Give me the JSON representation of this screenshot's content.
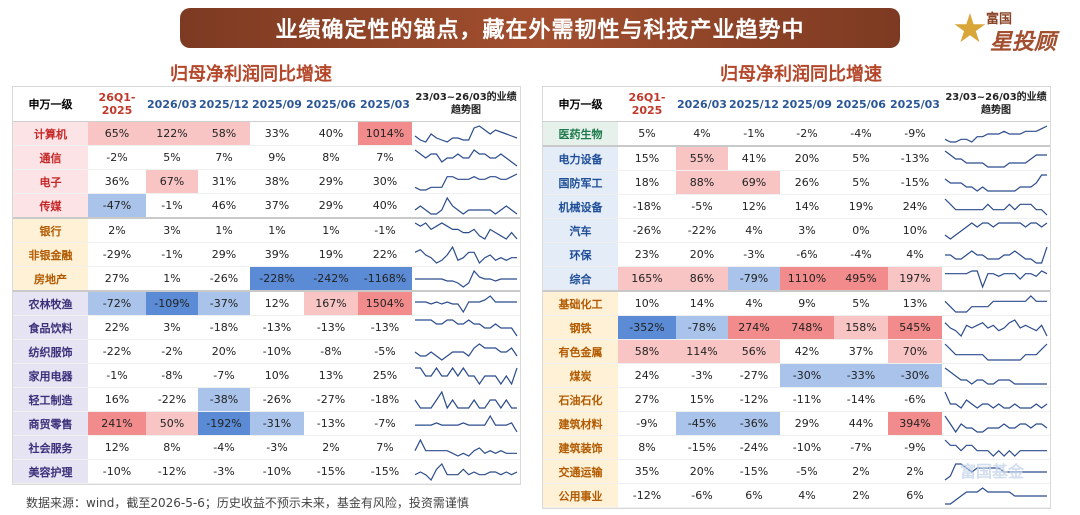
{
  "title": "业绩确定性的锚点，藏在外需韧性与科技产业趋势中",
  "logo": {
    "line1": "富国",
    "line2": "星投顾"
  },
  "footer": "数据来源：wind，截至2026-5-6；历史收益不预示未来，基金有风险，投资需谨慎",
  "watermark": "富国基金",
  "colors": {
    "high_red": "#f28b8b",
    "mid_red": "#f8c4c4",
    "low_red": "#fde6e6",
    "neg_blue": "#5b8bd4",
    "mid_blue": "#a9c3ea",
    "low_blue": "#dfe8f6",
    "line": "#2b4c8c"
  },
  "chart_data": [
    {
      "type": "table",
      "title": "归母净利润同比增速",
      "columns": [
        "申万一级",
        "26Q1-2025",
        "2026/03",
        "2025/12",
        "2025/09",
        "2025/06",
        "2025/03",
        "23/03~26/03的业绩趋势图"
      ],
      "rows": [
        {
          "name": "计算机",
          "group": 1,
          "values": [
            "65%",
            "122%",
            "58%",
            "33%",
            "40%",
            "1014%"
          ],
          "trend": [
            5,
            3,
            2,
            6,
            4,
            3,
            2,
            4,
            4,
            3,
            3,
            9,
            10,
            8,
            6,
            8,
            7,
            6,
            5,
            4
          ]
        },
        {
          "name": "通信",
          "group": 1,
          "values": [
            "-2%",
            "5%",
            "7%",
            "9%",
            "8%",
            "7%"
          ],
          "trend": [
            6,
            5,
            4,
            5,
            5,
            3,
            4,
            4,
            5,
            4,
            4,
            6,
            5,
            5,
            4,
            4,
            5,
            4,
            3,
            2
          ]
        },
        {
          "name": "电子",
          "group": 1,
          "values": [
            "36%",
            "67%",
            "31%",
            "38%",
            "29%",
            "30%"
          ],
          "trend": [
            2,
            1,
            1,
            2,
            2,
            2,
            6,
            6,
            5,
            5,
            5,
            6,
            5,
            5,
            6,
            6,
            5,
            5,
            6,
            7
          ]
        },
        {
          "name": "传媒",
          "group": 1,
          "values": [
            "-47%",
            "-1%",
            "46%",
            "37%",
            "29%",
            "40%"
          ],
          "trend": [
            5,
            6,
            5,
            4,
            4,
            5,
            8,
            6,
            5,
            4,
            5,
            5,
            5,
            5,
            5,
            4,
            5,
            6,
            5,
            4
          ]
        },
        {
          "name": "银行",
          "group": 2,
          "values": [
            "2%",
            "3%",
            "1%",
            "1%",
            "1%",
            "-1%"
          ],
          "trend": [
            7,
            6,
            7,
            5,
            6,
            7,
            6,
            5,
            5,
            4,
            4,
            5,
            3,
            2,
            5,
            4,
            3,
            2,
            4,
            2
          ]
        },
        {
          "name": "非银金融",
          "group": 2,
          "values": [
            "-29%",
            "-1%",
            "29%",
            "39%",
            "19%",
            "22%"
          ],
          "trend": [
            6,
            7,
            5,
            4,
            2,
            3,
            5,
            8,
            3,
            4,
            6,
            6,
            2,
            4,
            5,
            3,
            4,
            3,
            4,
            4
          ]
        },
        {
          "name": "房地产",
          "group": 2,
          "values": [
            "27%",
            "1%",
            "-26%",
            "-228%",
            "-242%",
            "-1168%"
          ],
          "trend": [
            5,
            5,
            5,
            5,
            5,
            5,
            4,
            4,
            3,
            1,
            3,
            9,
            6,
            5,
            5,
            4,
            5,
            5,
            5,
            5
          ]
        },
        {
          "name": "农林牧渔",
          "group": 3,
          "values": [
            "-72%",
            "-109%",
            "-37%",
            "12%",
            "167%",
            "1504%"
          ],
          "trend": [
            6,
            6,
            6,
            5,
            6,
            5,
            6,
            5,
            5,
            1,
            6,
            6,
            6,
            7,
            9,
            6,
            6,
            6,
            6,
            6
          ]
        },
        {
          "name": "食品饮料",
          "group": 3,
          "values": [
            "22%",
            "3%",
            "-18%",
            "-13%",
            "-13%",
            "-13%"
          ],
          "trend": [
            6,
            6,
            6,
            6,
            5,
            5,
            6,
            6,
            5,
            5,
            6,
            5,
            5,
            4,
            4,
            5,
            4,
            4,
            4,
            2
          ]
        },
        {
          "name": "纺织服饰",
          "group": 3,
          "values": [
            "-22%",
            "-2%",
            "20%",
            "-10%",
            "-8%",
            "-5%"
          ],
          "trend": [
            4,
            3,
            3,
            4,
            3,
            2,
            3,
            4,
            4,
            4,
            3,
            5,
            6,
            5,
            5,
            5,
            4,
            4,
            5,
            3
          ]
        },
        {
          "name": "家用电器",
          "group": 3,
          "values": [
            "-1%",
            "-8%",
            "-7%",
            "10%",
            "13%",
            "25%"
          ],
          "trend": [
            6,
            6,
            5,
            5,
            6,
            5,
            5,
            6,
            5,
            6,
            5,
            5,
            4,
            5,
            5,
            5,
            4,
            5,
            4,
            6
          ]
        },
        {
          "name": "轻工制造",
          "group": 3,
          "values": [
            "16%",
            "-22%",
            "-38%",
            "-26%",
            "-27%",
            "-18%"
          ],
          "trend": [
            4,
            3,
            3,
            3,
            4,
            5,
            3,
            4,
            3,
            3,
            3,
            4,
            3,
            3,
            4,
            4,
            3,
            4,
            3,
            3
          ]
        },
        {
          "name": "商贸零售",
          "group": 3,
          "values": [
            "241%",
            "50%",
            "-192%",
            "-31%",
            "-13%",
            "-7%"
          ],
          "trend": [
            5,
            5,
            5,
            5,
            6,
            5,
            5,
            5,
            5,
            6,
            5,
            5,
            5,
            5,
            9,
            5,
            5,
            5,
            6,
            2
          ]
        },
        {
          "name": "社会服务",
          "group": 3,
          "values": [
            "12%",
            "8%",
            "-4%",
            "-3%",
            "2%",
            "7%"
          ],
          "trend": [
            5,
            9,
            5,
            5,
            5,
            5,
            5,
            4,
            3,
            4,
            3,
            5,
            6,
            4,
            5,
            4,
            5,
            4,
            4,
            4
          ]
        },
        {
          "name": "美容护理",
          "group": 3,
          "values": [
            "-10%",
            "-12%",
            "-3%",
            "-10%",
            "-15%",
            "-15%"
          ],
          "trend": [
            4,
            5,
            4,
            2,
            6,
            8,
            4,
            4,
            4,
            6,
            4,
            5,
            4,
            4,
            5,
            5,
            4,
            5,
            4,
            5
          ]
        }
      ]
    },
    {
      "type": "table",
      "title": "归母净利润同比增速",
      "columns": [
        "申万一级",
        "26Q1-2025",
        "2026/03",
        "2025/12",
        "2025/09",
        "2025/06",
        "2025/03",
        "23/03~26/03的业绩趋势图"
      ],
      "rows": [
        {
          "name": "医药生物",
          "group": 4,
          "values": [
            "5%",
            "4%",
            "-1%",
            "-2%",
            "-4%",
            "-9%"
          ],
          "trend": [
            3,
            2,
            2,
            3,
            3,
            2,
            4,
            4,
            5,
            5,
            5,
            6,
            5,
            5,
            5,
            6,
            6,
            6,
            7,
            8
          ]
        },
        {
          "name": "电力设备",
          "group": 5,
          "values": [
            "15%",
            "55%",
            "41%",
            "20%",
            "5%",
            "-13%"
          ],
          "trend": [
            8,
            7,
            6,
            6,
            5,
            5,
            5,
            5,
            4,
            4,
            4,
            4,
            5,
            5,
            5,
            5,
            6,
            7,
            7,
            7
          ]
        },
        {
          "name": "国防军工",
          "group": 5,
          "values": [
            "18%",
            "88%",
            "69%",
            "26%",
            "5%",
            "-15%"
          ],
          "trend": [
            7,
            6,
            6,
            6,
            5,
            5,
            4,
            5,
            4,
            4,
            4,
            4,
            4,
            4,
            5,
            5,
            5,
            6,
            8,
            8
          ]
        },
        {
          "name": "机械设备",
          "group": 5,
          "values": [
            "-18%",
            "-5%",
            "12%",
            "14%",
            "19%",
            "24%"
          ],
          "trend": [
            7,
            6,
            5,
            5,
            5,
            5,
            5,
            5,
            6,
            5,
            5,
            5,
            6,
            5,
            6,
            6,
            6,
            5,
            5,
            4
          ]
        },
        {
          "name": "汽车",
          "group": 5,
          "values": [
            "-26%",
            "-22%",
            "4%",
            "3%",
            "0%",
            "10%"
          ],
          "trend": [
            3,
            2,
            3,
            4,
            5,
            6,
            5,
            6,
            6,
            5,
            6,
            6,
            6,
            6,
            6,
            5,
            6,
            6,
            5,
            6
          ]
        },
        {
          "name": "环保",
          "group": 5,
          "values": [
            "23%",
            "20%",
            "-3%",
            "-6%",
            "-4%",
            "4%"
          ],
          "trend": [
            5,
            5,
            4,
            4,
            5,
            6,
            5,
            5,
            4,
            4,
            4,
            5,
            5,
            6,
            5,
            4,
            4,
            3,
            3,
            7
          ]
        },
        {
          "name": "综合",
          "group": 5,
          "values": [
            "165%",
            "86%",
            "-79%",
            "1110%",
            "495%",
            "197%"
          ],
          "trend": [
            6,
            6,
            6,
            6,
            6,
            7,
            7,
            1,
            6,
            6,
            5,
            6,
            6,
            6,
            4,
            6,
            6,
            5,
            7,
            6
          ]
        },
        {
          "name": "基础化工",
          "group": 6,
          "values": [
            "10%",
            "14%",
            "4%",
            "9%",
            "5%",
            "13%"
          ],
          "trend": [
            6,
            5,
            4,
            4,
            4,
            5,
            5,
            5,
            5,
            6,
            6,
            6,
            6,
            6,
            6,
            6,
            7,
            6,
            6,
            6
          ]
        },
        {
          "name": "钢铁",
          "group": 6,
          "values": [
            "-352%",
            "-78%",
            "274%",
            "748%",
            "158%",
            "545%"
          ],
          "trend": [
            7,
            5,
            4,
            2,
            6,
            5,
            6,
            7,
            5,
            6,
            4,
            5,
            7,
            8,
            5,
            6,
            5,
            4,
            6,
            2
          ]
        },
        {
          "name": "有色金属",
          "group": 6,
          "values": [
            "58%",
            "114%",
            "56%",
            "42%",
            "37%",
            "70%"
          ],
          "trend": [
            7,
            6,
            5,
            5,
            5,
            5,
            5,
            5,
            4,
            4,
            4,
            4,
            4,
            4,
            4,
            5,
            5,
            5,
            6,
            7
          ]
        },
        {
          "name": "煤炭",
          "group": 6,
          "values": [
            "24%",
            "-3%",
            "-27%",
            "-30%",
            "-33%",
            "-30%"
          ],
          "trend": [
            8,
            7,
            6,
            5,
            5,
            4,
            5,
            5,
            4,
            4,
            5,
            5,
            5,
            4,
            4,
            4,
            4,
            4,
            4,
            4
          ]
        },
        {
          "name": "石油石化",
          "group": 6,
          "values": [
            "27%",
            "15%",
            "-12%",
            "-11%",
            "-14%",
            "-6%"
          ],
          "trend": [
            8,
            5,
            5,
            4,
            6,
            5,
            4,
            5,
            5,
            4,
            5,
            4,
            4,
            5,
            4,
            4,
            4,
            5,
            4,
            5
          ]
        },
        {
          "name": "建筑材料",
          "group": 6,
          "values": [
            "-9%",
            "-45%",
            "-36%",
            "29%",
            "44%",
            "394%"
          ],
          "trend": [
            7,
            5,
            3,
            5,
            4,
            4,
            3,
            3,
            4,
            4,
            4,
            5,
            4,
            4,
            5,
            5,
            4,
            5,
            5,
            4
          ]
        },
        {
          "name": "建筑装饰",
          "group": 6,
          "values": [
            "8%",
            "-15%",
            "-24%",
            "-10%",
            "-7%",
            "-9%"
          ],
          "trend": [
            6,
            5,
            5,
            4,
            5,
            5,
            4,
            4,
            4,
            3,
            4,
            3,
            4,
            3,
            4,
            4,
            4,
            4,
            4,
            4
          ]
        },
        {
          "name": "交通运输",
          "group": 6,
          "values": [
            "35%",
            "20%",
            "-15%",
            "-5%",
            "2%",
            "2%"
          ],
          "trend": [
            3,
            4,
            7,
            7,
            6,
            5,
            6,
            6,
            6,
            6,
            6,
            5,
            5,
            5,
            5,
            5,
            5,
            5,
            5,
            5
          ]
        },
        {
          "name": "公用事业",
          "group": 6,
          "values": [
            "-12%",
            "-6%",
            "6%",
            "4%",
            "2%",
            "6%"
          ],
          "trend": [
            3,
            3,
            4,
            5,
            6,
            6,
            6,
            7,
            6,
            6,
            6,
            6,
            6,
            5,
            5,
            5,
            5,
            5,
            5,
            5
          ]
        }
      ]
    }
  ]
}
